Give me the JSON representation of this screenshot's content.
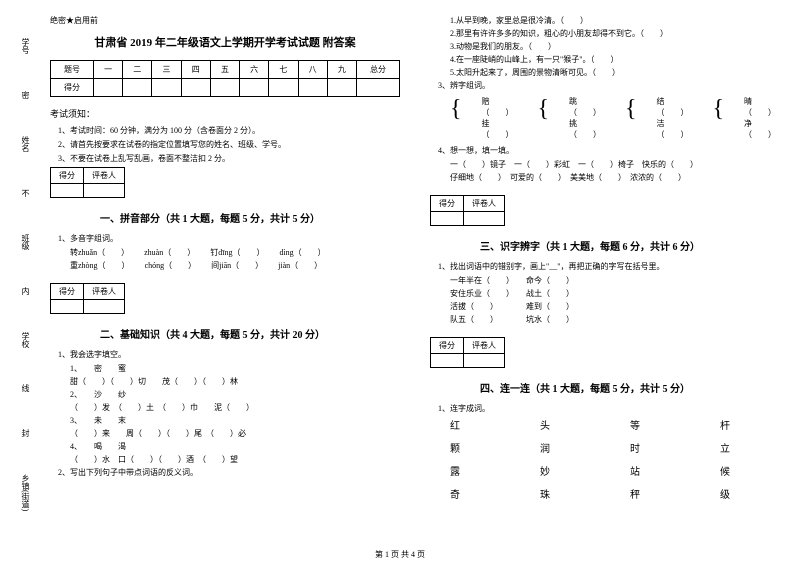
{
  "header_tag": "绝密★启用前",
  "title": "甘肃省 2019 年二年级语文上学期开学考试试题 附答案",
  "sidebar": [
    "学号",
    "姓名",
    "班级",
    "学校",
    "乡镇(街道)"
  ],
  "sidebar_markers": [
    "密",
    "不",
    "内",
    "线",
    "封"
  ],
  "score_table": {
    "headers": [
      "题号",
      "一",
      "二",
      "三",
      "四",
      "五",
      "六",
      "七",
      "八",
      "九",
      "总分"
    ],
    "row2": "得分"
  },
  "notice_title": "考试须知：",
  "notices": [
    "1、考试时间：60 分钟，满分为 100 分（含卷面分 2 分）。",
    "2、请首先按要求在试卷的指定位置填写您的姓名、班级、学号。",
    "3、不要在试卷上乱写乱画，卷面不整洁扣 2 分。"
  ],
  "score_box_header": [
    "得分",
    "评卷人"
  ],
  "sections": {
    "s1": {
      "title": "一、拼音部分（共 1 大题，每题 5 分，共计 5 分）",
      "q1": "1、多音字组词。",
      "pinyin1": [
        "转zhuǎn（　　）",
        "zhuàn（　　）",
        "钉dīng（　　）",
        "dìng（　　）"
      ],
      "pinyin2": [
        "重zhòng（　　）",
        "chóng（　　）",
        "间jiān（　　）",
        "jiàn（　　）"
      ]
    },
    "s2": {
      "title": "二、基础知识（共 4 大题，每题 5 分，共计 20 分）",
      "q1": "1、我会选字填空。",
      "items1": [
        "1、　　密　　蜜",
        "甜（　　）（　　）切　　茂（　　）（　　）林",
        "2、　　沙　　纱",
        "（　　）发　（　　）土　（　　）巾　　泥（　　）",
        "3、　　未　　末",
        "（　　）来　　周（　　）（　　）尾　（　　）必",
        "4、　　喝　　渴",
        "（　　）水　口（　　）（　　）酒　（　　）望"
      ],
      "q2": "2、写出下列句子中带点词语的反义词。"
    },
    "s3": {
      "title": "三、识字辨字（共 1 大题，每题 6 分，共计 6 分）",
      "q1": "1、找出词语中的错别字，画上\"__\"，再把正确的字写在括号里。",
      "items": [
        "一年半在（　　）　　命今（　　）",
        "安住乐业（　　）　　战土（　　）",
        "活拔（　　）　　　　难到（　　）",
        "队五（　　）　　　　坑水（　　）"
      ]
    },
    "s4": {
      "title": "四、连一连（共 1 大题，每题 5 分，共计 5 分）",
      "q1": "1、连字成词。",
      "grid": [
        "红",
        "头",
        "等",
        "杆",
        "颗",
        "润",
        "时",
        "立",
        "露",
        "妙",
        "站",
        "候",
        "奇",
        "珠",
        "秤",
        "级"
      ]
    }
  },
  "right_col": {
    "antonym_items": [
      "1.从早到晚，家里总是很冷清。（　　）",
      "2.那里有许许多多的知识，粗心的小朋友却得不到它。（　　）",
      "3.动物是我们的朋友。（　　）",
      "4.在一座陡峭的山峰上，有一只\"猴子\"。（　　）",
      "5.太阳升起来了，周围的景物清晰可见。（　　）"
    ],
    "q3": "3、辨字组词。",
    "brace_pairs": [
      [
        "赔（　　）",
        "挂（　　）"
      ],
      [
        "跳（　　）",
        "挑（　　）"
      ],
      [
        "结（　　）",
        "洁（　　）"
      ],
      [
        "晴（　　）",
        "净（　　）"
      ]
    ],
    "q4": "4、想一想，填一填。",
    "fill_lines": [
      "一（　　）镜子　一（　　）彩虹　一（　　）椅子　快乐的（　　）",
      "仔细地（　　）　可爱的（　　）　美美地（　　）　浓浓的（　　）"
    ]
  },
  "footer": "第 1 页 共 4 页"
}
